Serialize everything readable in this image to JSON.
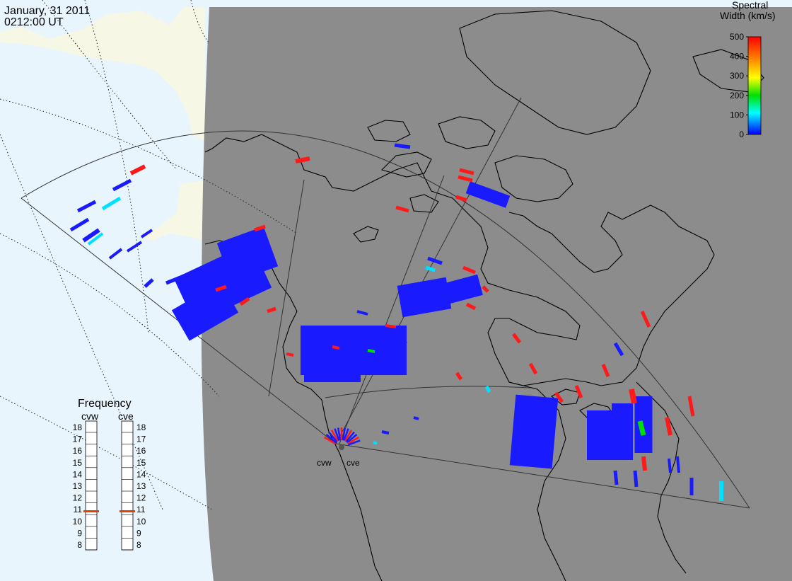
{
  "header": {
    "date": "January, 31 2011",
    "time": "0212:00 UT"
  },
  "colorbar": {
    "title_line1": "Spectral",
    "title_line2": "Width (km/s)",
    "ticks": [
      "500",
      "400",
      "300",
      "200",
      "100",
      "0"
    ],
    "colors": [
      "#ff0000",
      "#ff8000",
      "#ffff00",
      "#00e000",
      "#00ffff",
      "#0000ff"
    ]
  },
  "radars": {
    "west": {
      "code": "cvw"
    },
    "east": {
      "code": "cve"
    }
  },
  "frequency_panel": {
    "title": "Frequency",
    "left_label": "cvw",
    "right_label": "cve",
    "ticks": [
      "18",
      "17",
      "16",
      "15",
      "14",
      "13",
      "12",
      "11",
      "10",
      "9",
      "8"
    ],
    "cvw_value": 10.8,
    "cve_value": 10.8,
    "marker_color": "#e04000"
  },
  "map_colors": {
    "ocean": "#e8f5fc",
    "land_sunlit": "#f7f7e6",
    "night_shade": "#8c8c8c"
  }
}
